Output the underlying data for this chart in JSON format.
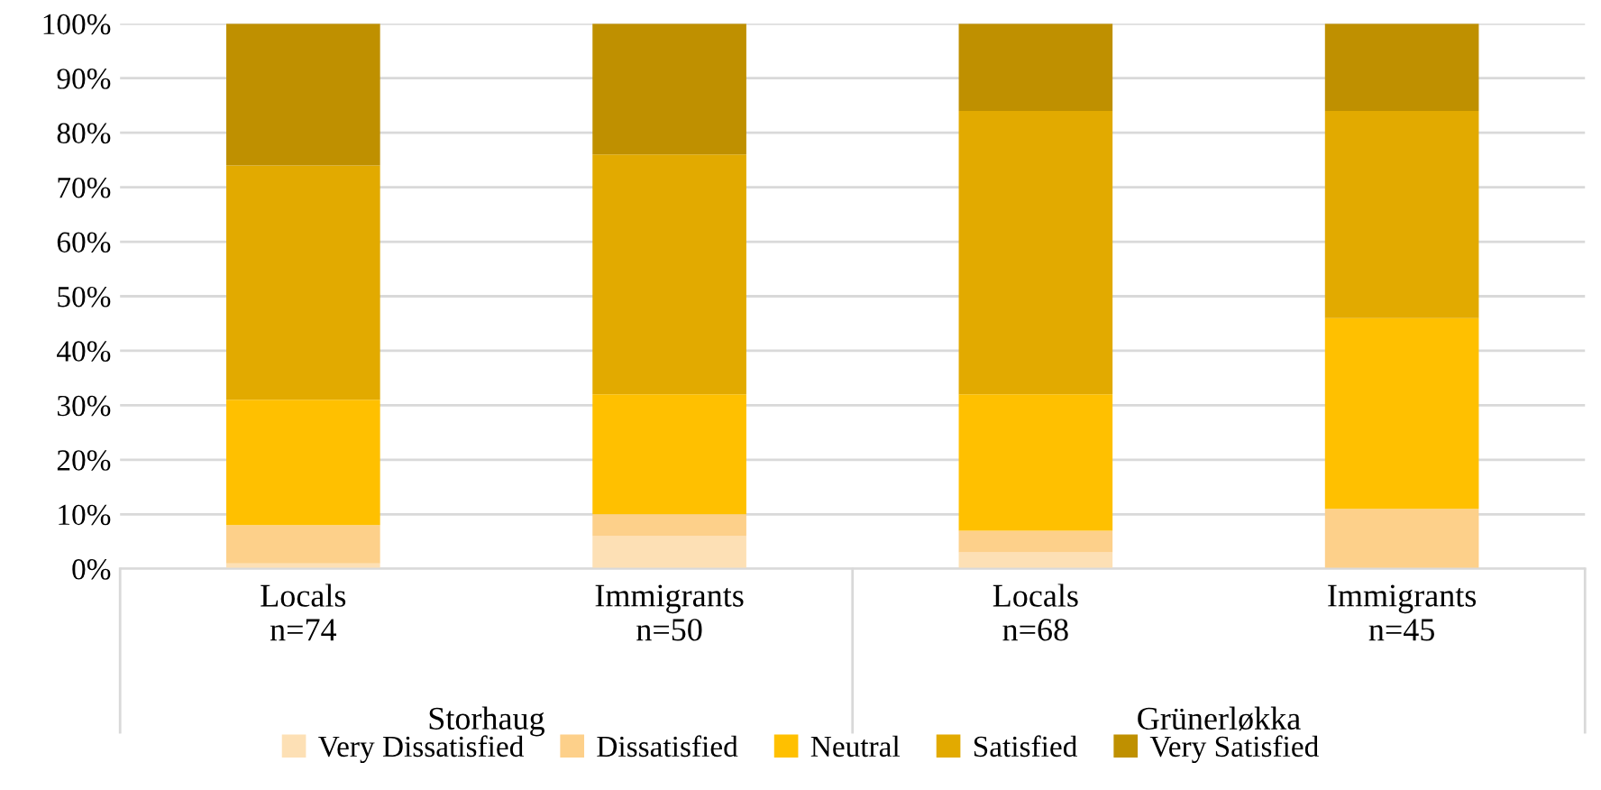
{
  "chart_data": {
    "type": "bar",
    "stacked": true,
    "categories": [
      "Locals\nn=74",
      "Immigrants\nn=50",
      "Locals\nn=68",
      "Immigrants\nn=45"
    ],
    "annotations": [
      "Storhaug",
      "Grünerløkka"
    ],
    "series": [
      {
        "name": "Very Dissatisfied",
        "color": "#fde0b5",
        "values": [
          1,
          6,
          3,
          0
        ]
      },
      {
        "name": "Dissatisfied",
        "color": "#fdd08a",
        "values": [
          7,
          4,
          4,
          11
        ]
      },
      {
        "name": "Neutral",
        "color": "#ffc000",
        "values": [
          23,
          22,
          25,
          35
        ]
      },
      {
        "name": "Satisfied",
        "color": "#e2aa00",
        "values": [
          43,
          44,
          52,
          38
        ]
      },
      {
        "name": "Very Satisfied",
        "color": "#bf9000",
        "values": [
          26,
          24,
          16,
          16
        ]
      }
    ],
    "ylim": [
      0,
      100
    ],
    "yticks": [
      {
        "value": 0,
        "label": "0%"
      },
      {
        "value": 10,
        "label": "10%"
      },
      {
        "value": 20,
        "label": "20%"
      },
      {
        "value": 30,
        "label": "30%"
      },
      {
        "value": 40,
        "label": "40%"
      },
      {
        "value": 50,
        "label": "50%"
      },
      {
        "value": 60,
        "label": "60%"
      },
      {
        "value": 70,
        "label": "70%"
      },
      {
        "value": 80,
        "label": "80%"
      },
      {
        "value": 90,
        "label": "90%"
      },
      {
        "value": 100,
        "label": "100%"
      }
    ],
    "grid": "y",
    "legend": "bottom"
  }
}
